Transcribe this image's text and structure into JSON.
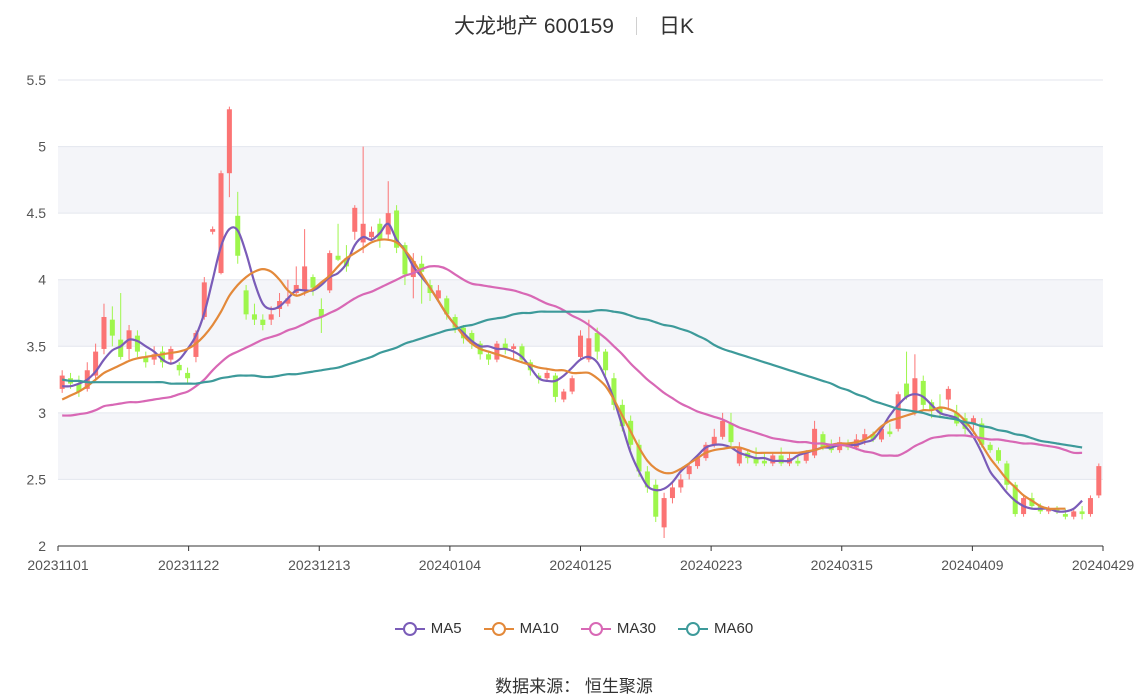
{
  "title": {
    "name": "大龙地产 600159",
    "period": "日K"
  },
  "source_text": "数据来源： 恒生聚源",
  "colors": {
    "up": "#fb7474",
    "down": "#9ef64c",
    "MA5": "#7a5cb8",
    "MA10": "#e3893a",
    "MA30": "#d868b5",
    "MA60": "#3d9a9a",
    "grid": "#e3e6ee",
    "band": "#f4f5f9",
    "axis": "#555555"
  },
  "chart_data": {
    "type": "candlestick",
    "ylim": [
      2,
      5.5
    ],
    "y_ticks": [
      "2",
      "2.5",
      "3",
      "3.5",
      "4",
      "4.5",
      "5",
      "5.5"
    ],
    "x_ticks": [
      "20231101",
      "20231122",
      "20231213",
      "20240104",
      "20240125",
      "20240223",
      "20240315",
      "20240409",
      "20240429"
    ],
    "legend": [
      "MA5",
      "MA10",
      "MA30",
      "MA60"
    ],
    "candles": [
      [
        3.18,
        3.28,
        3.32,
        3.15
      ],
      [
        3.26,
        3.22,
        3.3,
        3.18
      ],
      [
        3.22,
        3.16,
        3.28,
        3.12
      ],
      [
        3.18,
        3.32,
        3.38,
        3.16
      ],
      [
        3.28,
        3.46,
        3.52,
        3.24
      ],
      [
        3.48,
        3.72,
        3.82,
        3.44
      ],
      [
        3.7,
        3.58,
        3.8,
        3.5
      ],
      [
        3.55,
        3.42,
        3.9,
        3.4
      ],
      [
        3.48,
        3.62,
        3.66,
        3.4
      ],
      [
        3.58,
        3.46,
        3.62,
        3.42
      ],
      [
        3.42,
        3.38,
        3.46,
        3.34
      ],
      [
        3.4,
        3.44,
        3.5,
        3.36
      ],
      [
        3.46,
        3.38,
        3.5,
        3.34
      ],
      [
        3.4,
        3.48,
        3.5,
        3.36
      ],
      [
        3.36,
        3.32,
        3.38,
        3.28
      ],
      [
        3.3,
        3.26,
        3.34,
        3.22
      ],
      [
        3.42,
        3.6,
        3.62,
        3.38
      ],
      [
        3.72,
        3.98,
        4.02,
        3.7
      ],
      [
        4.36,
        4.38,
        4.4,
        4.34
      ],
      [
        4.05,
        4.8,
        4.82,
        4.04
      ],
      [
        4.8,
        5.28,
        5.3,
        4.62
      ],
      [
        4.48,
        4.18,
        4.66,
        4.12
      ],
      [
        3.92,
        3.74,
        3.96,
        3.7
      ],
      [
        3.74,
        3.7,
        3.82,
        3.66
      ],
      [
        3.7,
        3.66,
        3.74,
        3.62
      ],
      [
        3.7,
        3.74,
        3.8,
        3.66
      ],
      [
        3.78,
        3.84,
        3.9,
        3.72
      ],
      [
        3.82,
        3.86,
        4.0,
        3.8
      ],
      [
        3.9,
        3.96,
        4.1,
        3.88
      ],
      [
        3.92,
        4.1,
        4.38,
        3.88
      ],
      [
        4.02,
        3.94,
        4.04,
        3.88
      ],
      [
        3.78,
        3.72,
        3.86,
        3.6
      ],
      [
        3.92,
        4.2,
        4.22,
        3.9
      ],
      [
        4.18,
        4.15,
        4.42,
        4.14
      ],
      [
        4.16,
        4.1,
        4.26,
        4.06
      ],
      [
        4.36,
        4.54,
        4.56,
        4.3
      ],
      [
        4.28,
        4.42,
        5.0,
        4.2
      ],
      [
        4.32,
        4.36,
        4.4,
        4.3
      ],
      [
        4.42,
        4.3,
        4.46,
        4.24
      ],
      [
        4.34,
        4.5,
        4.74,
        4.3
      ],
      [
        4.52,
        4.24,
        4.56,
        4.2
      ],
      [
        4.26,
        4.04,
        4.28,
        3.96
      ],
      [
        4.02,
        4.14,
        4.2,
        3.86
      ],
      [
        4.12,
        4.06,
        4.18,
        3.82
      ],
      [
        3.96,
        3.9,
        4.0,
        3.84
      ],
      [
        3.86,
        3.92,
        3.96,
        3.84
      ],
      [
        3.86,
        3.74,
        3.88,
        3.7
      ],
      [
        3.72,
        3.64,
        3.74,
        3.6
      ],
      [
        3.64,
        3.56,
        3.66,
        3.52
      ],
      [
        3.6,
        3.52,
        3.62,
        3.48
      ],
      [
        3.52,
        3.44,
        3.54,
        3.4
      ],
      [
        3.44,
        3.4,
        3.46,
        3.36
      ],
      [
        3.4,
        3.52,
        3.54,
        3.38
      ],
      [
        3.52,
        3.48,
        3.56,
        3.44
      ],
      [
        3.48,
        3.5,
        3.52,
        3.4
      ],
      [
        3.5,
        3.4,
        3.52,
        3.38
      ],
      [
        3.38,
        3.32,
        3.4,
        3.28
      ],
      [
        3.28,
        3.26,
        3.3,
        3.22
      ],
      [
        3.26,
        3.3,
        3.32,
        3.24
      ],
      [
        3.28,
        3.12,
        3.3,
        3.08
      ],
      [
        3.1,
        3.16,
        3.18,
        3.08
      ],
      [
        3.16,
        3.26,
        3.28,
        3.14
      ],
      [
        3.42,
        3.58,
        3.62,
        3.4
      ],
      [
        3.4,
        3.56,
        3.7,
        3.38
      ],
      [
        3.6,
        3.46,
        3.64,
        3.4
      ],
      [
        3.46,
        3.32,
        3.48,
        3.28
      ],
      [
        3.26,
        3.06,
        3.3,
        3.02
      ],
      [
        3.06,
        2.9,
        3.1,
        2.86
      ],
      [
        2.94,
        2.76,
        2.98,
        2.72
      ],
      [
        2.76,
        2.56,
        2.8,
        2.52
      ],
      [
        2.56,
        2.44,
        2.6,
        2.4
      ],
      [
        2.46,
        2.22,
        2.5,
        2.18
      ],
      [
        2.14,
        2.36,
        2.4,
        2.06
      ],
      [
        2.36,
        2.44,
        2.48,
        2.32
      ],
      [
        2.44,
        2.5,
        2.54,
        2.4
      ],
      [
        2.54,
        2.6,
        2.62,
        2.5
      ],
      [
        2.6,
        2.66,
        2.68,
        2.58
      ],
      [
        2.66,
        2.76,
        2.78,
        2.64
      ],
      [
        2.76,
        2.82,
        2.88,
        2.74
      ],
      [
        2.82,
        2.94,
        3.0,
        2.8
      ],
      [
        2.92,
        2.78,
        3.0,
        2.74
      ],
      [
        2.62,
        2.74,
        2.78,
        2.6
      ],
      [
        2.7,
        2.66,
        2.72,
        2.62
      ],
      [
        2.66,
        2.62,
        2.74,
        2.6
      ],
      [
        2.64,
        2.62,
        2.7,
        2.6
      ],
      [
        2.62,
        2.68,
        2.7,
        2.6
      ],
      [
        2.68,
        2.62,
        2.74,
        2.6
      ],
      [
        2.62,
        2.66,
        2.7,
        2.6
      ],
      [
        2.64,
        2.62,
        2.68,
        2.6
      ],
      [
        2.64,
        2.7,
        2.72,
        2.62
      ],
      [
        2.68,
        2.88,
        2.94,
        2.66
      ],
      [
        2.84,
        2.74,
        2.86,
        2.72
      ],
      [
        2.76,
        2.72,
        2.8,
        2.7
      ],
      [
        2.72,
        2.78,
        2.82,
        2.7
      ],
      [
        2.76,
        2.74,
        2.8,
        2.72
      ],
      [
        2.74,
        2.8,
        2.84,
        2.72
      ],
      [
        2.8,
        2.84,
        2.88,
        2.76
      ],
      [
        2.84,
        2.8,
        2.86,
        2.78
      ],
      [
        2.8,
        2.88,
        2.9,
        2.78
      ],
      [
        2.86,
        2.84,
        2.92,
        2.82
      ],
      [
        2.88,
        3.14,
        3.16,
        2.86
      ],
      [
        3.22,
        3.12,
        3.46,
        3.1
      ],
      [
        3.0,
        3.26,
        3.44,
        2.98
      ],
      [
        3.24,
        3.06,
        3.28,
        3.02
      ],
      [
        3.08,
        3.02,
        3.1,
        2.96
      ],
      [
        3.04,
        3.0,
        3.14,
        2.96
      ],
      [
        3.1,
        3.18,
        3.2,
        3.02
      ],
      [
        3.0,
        2.92,
        3.06,
        2.9
      ],
      [
        2.96,
        2.88,
        3.0,
        2.84
      ],
      [
        2.92,
        2.96,
        2.98,
        2.84
      ],
      [
        2.92,
        2.76,
        2.96,
        2.74
      ],
      [
        2.76,
        2.72,
        2.78,
        2.7
      ],
      [
        2.72,
        2.64,
        2.74,
        2.62
      ],
      [
        2.62,
        2.46,
        2.64,
        2.42
      ],
      [
        2.46,
        2.24,
        2.48,
        2.22
      ],
      [
        2.24,
        2.36,
        2.38,
        2.22
      ],
      [
        2.36,
        2.3,
        2.4,
        2.28
      ],
      [
        2.3,
        2.26,
        2.32,
        2.24
      ],
      [
        2.26,
        2.28,
        2.3,
        2.24
      ],
      [
        2.28,
        2.26,
        2.3,
        2.24
      ],
      [
        2.24,
        2.22,
        2.28,
        2.2
      ],
      [
        2.22,
        2.26,
        2.28,
        2.2
      ],
      [
        2.26,
        2.24,
        2.3,
        2.2
      ],
      [
        2.24,
        2.36,
        2.38,
        2.22
      ],
      [
        2.38,
        2.6,
        2.62,
        2.36
      ]
    ],
    "series": [
      {
        "name": "MA5",
        "values": [
          3.2,
          3.2,
          3.22,
          3.25,
          3.31,
          3.4,
          3.47,
          3.5,
          3.55,
          3.54,
          3.5,
          3.46,
          3.4,
          3.37,
          3.4,
          3.48,
          3.58,
          3.75,
          4.0,
          4.25,
          4.38,
          4.37,
          4.2,
          3.98,
          3.82,
          3.78,
          3.8,
          3.86,
          3.92,
          3.92,
          3.92,
          3.96,
          4.02,
          4.05,
          4.12,
          4.26,
          4.32,
          4.3,
          4.35,
          4.42,
          4.3,
          4.22,
          4.1,
          4.02,
          3.94,
          3.84,
          3.74,
          3.66,
          3.6,
          3.54,
          3.5,
          3.5,
          3.48,
          3.48,
          3.46,
          3.42,
          3.34,
          3.26,
          3.24,
          3.24,
          3.28,
          3.34,
          3.4,
          3.42,
          3.38,
          3.26,
          3.1,
          2.9,
          2.7,
          2.56,
          2.45,
          2.42,
          2.43,
          2.48,
          2.56,
          2.62,
          2.68,
          2.74,
          2.76,
          2.76,
          2.74,
          2.7,
          2.68,
          2.66,
          2.66,
          2.64,
          2.64,
          2.64,
          2.68,
          2.7,
          2.72,
          2.74,
          2.74,
          2.76,
          2.76,
          2.76,
          2.78,
          2.8,
          2.88,
          2.98,
          3.06,
          3.12,
          3.14,
          3.12,
          3.06,
          3.0,
          2.98,
          2.96,
          2.9,
          2.82,
          2.7,
          2.56,
          2.48,
          2.4,
          2.34,
          2.3,
          2.28,
          2.28,
          2.28,
          2.26,
          2.26,
          2.28,
          2.34
        ]
      },
      {
        "name": "MA10",
        "values": [
          3.1,
          3.13,
          3.16,
          3.2,
          3.25,
          3.3,
          3.33,
          3.36,
          3.39,
          3.41,
          3.42,
          3.43,
          3.44,
          3.45,
          3.46,
          3.48,
          3.52,
          3.58,
          3.66,
          3.76,
          3.88,
          3.96,
          4.02,
          4.06,
          4.08,
          4.06,
          4.0,
          3.92,
          3.88,
          3.9,
          3.93,
          3.98,
          4.03,
          4.1,
          4.16,
          4.2,
          4.24,
          4.28,
          4.3,
          4.3,
          4.28,
          4.22,
          4.14,
          4.04,
          3.94,
          3.84,
          3.74,
          3.66,
          3.58,
          3.52,
          3.48,
          3.46,
          3.44,
          3.42,
          3.4,
          3.38,
          3.36,
          3.34,
          3.33,
          3.32,
          3.32,
          3.3,
          3.3,
          3.3,
          3.26,
          3.2,
          3.1,
          2.98,
          2.86,
          2.74,
          2.64,
          2.58,
          2.55,
          2.55,
          2.58,
          2.62,
          2.66,
          2.7,
          2.72,
          2.73,
          2.74,
          2.74,
          2.72,
          2.7,
          2.7,
          2.7,
          2.7,
          2.7,
          2.7,
          2.71,
          2.72,
          2.74,
          2.76,
          2.77,
          2.77,
          2.78,
          2.8,
          2.84,
          2.9,
          2.94,
          2.96,
          2.98,
          3.0,
          3.02,
          3.02,
          3.04,
          3.03,
          3.0,
          2.94,
          2.86,
          2.76,
          2.66,
          2.58,
          2.5,
          2.44,
          2.38,
          2.34,
          2.3,
          2.28,
          2.28,
          2.28
        ]
      },
      {
        "name": "MA30",
        "values": [
          2.98,
          2.98,
          2.99,
          3.0,
          3.02,
          3.05,
          3.06,
          3.07,
          3.08,
          3.08,
          3.09,
          3.1,
          3.11,
          3.12,
          3.14,
          3.16,
          3.2,
          3.25,
          3.32,
          3.38,
          3.43,
          3.46,
          3.49,
          3.52,
          3.55,
          3.57,
          3.59,
          3.62,
          3.64,
          3.67,
          3.7,
          3.72,
          3.75,
          3.78,
          3.82,
          3.86,
          3.89,
          3.91,
          3.94,
          3.97,
          4.0,
          4.03,
          4.05,
          4.08,
          4.1,
          4.1,
          4.08,
          4.04,
          4.0,
          3.97,
          3.96,
          3.95,
          3.94,
          3.93,
          3.92,
          3.9,
          3.88,
          3.85,
          3.82,
          3.8,
          3.77,
          3.73,
          3.7,
          3.66,
          3.61,
          3.56,
          3.5,
          3.44,
          3.37,
          3.31,
          3.25,
          3.2,
          3.15,
          3.11,
          3.07,
          3.04,
          3.01,
          2.99,
          2.97,
          2.95,
          2.92,
          2.89,
          2.87,
          2.85,
          2.83,
          2.81,
          2.8,
          2.79,
          2.78,
          2.78,
          2.77,
          2.77,
          2.76,
          2.76,
          2.75,
          2.73,
          2.71,
          2.7,
          2.68,
          2.68,
          2.68,
          2.71,
          2.75,
          2.78,
          2.81,
          2.82,
          2.83,
          2.83,
          2.83,
          2.82,
          2.81,
          2.8,
          2.8,
          2.79,
          2.78,
          2.77,
          2.77,
          2.76,
          2.75,
          2.74,
          2.72,
          2.7,
          2.7
        ]
      },
      {
        "name": "MA60",
        "values": [
          3.25,
          3.24,
          3.24,
          3.23,
          3.23,
          3.23,
          3.23,
          3.23,
          3.23,
          3.23,
          3.23,
          3.23,
          3.23,
          3.22,
          3.22,
          3.22,
          3.22,
          3.23,
          3.24,
          3.26,
          3.27,
          3.28,
          3.28,
          3.28,
          3.27,
          3.27,
          3.28,
          3.29,
          3.29,
          3.3,
          3.31,
          3.32,
          3.33,
          3.34,
          3.36,
          3.38,
          3.4,
          3.42,
          3.45,
          3.47,
          3.49,
          3.52,
          3.54,
          3.56,
          3.58,
          3.6,
          3.62,
          3.63,
          3.65,
          3.66,
          3.68,
          3.7,
          3.71,
          3.72,
          3.74,
          3.75,
          3.75,
          3.76,
          3.76,
          3.76,
          3.76,
          3.76,
          3.76,
          3.76,
          3.77,
          3.77,
          3.76,
          3.75,
          3.73,
          3.71,
          3.7,
          3.68,
          3.66,
          3.65,
          3.63,
          3.61,
          3.58,
          3.55,
          3.51,
          3.48,
          3.46,
          3.44,
          3.42,
          3.4,
          3.38,
          3.36,
          3.34,
          3.32,
          3.3,
          3.28,
          3.26,
          3.24,
          3.22,
          3.19,
          3.17,
          3.14,
          3.12,
          3.09,
          3.07,
          3.05,
          3.03,
          3.02,
          3.01,
          3.0,
          2.98,
          2.97,
          2.96,
          2.95,
          2.93,
          2.92,
          2.9,
          2.89,
          2.87,
          2.86,
          2.84,
          2.83,
          2.81,
          2.79,
          2.78,
          2.77,
          2.76,
          2.75,
          2.74
        ]
      }
    ]
  }
}
